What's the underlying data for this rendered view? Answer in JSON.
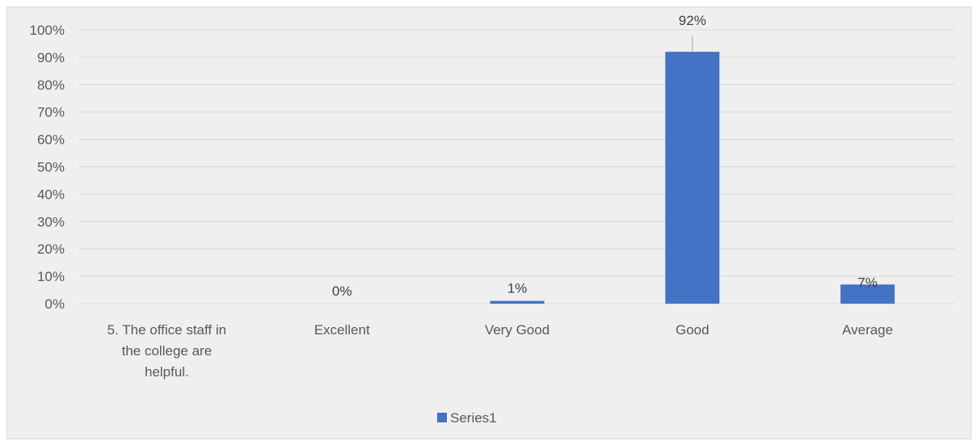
{
  "chart_data": {
    "type": "bar",
    "categories": [
      "5. The office staff in the college are helpful.",
      "Excellent",
      "Very Good",
      "Good",
      "Average"
    ],
    "category_lines": [
      [
        "5. The office staff in",
        "the college are",
        "helpful."
      ],
      [
        "Excellent"
      ],
      [
        "Very Good"
      ],
      [
        "Good"
      ],
      [
        "Average"
      ]
    ],
    "series": [
      {
        "name": "Series1",
        "values": [
          null,
          0,
          0.01,
          0.92,
          0.07
        ],
        "data_labels": [
          "",
          "0%",
          "1%",
          "92%",
          "7%"
        ]
      }
    ],
    "ylim": [
      0,
      1
    ],
    "yticks": [
      0,
      0.1,
      0.2,
      0.3,
      0.4,
      0.5,
      0.6,
      0.7,
      0.8,
      0.9,
      1.0
    ],
    "ytick_labels": [
      "0%",
      "10%",
      "20%",
      "30%",
      "40%",
      "50%",
      "60%",
      "70%",
      "80%",
      "90%",
      "100%"
    ],
    "title": "",
    "xlabel": "",
    "ylabel": "",
    "grid": true,
    "legend_position": "bottom",
    "colors": {
      "bar": "#4472c4",
      "grid": "#d9d9d9",
      "background": "#efefef",
      "leader_line": "#a6a6a6"
    }
  }
}
